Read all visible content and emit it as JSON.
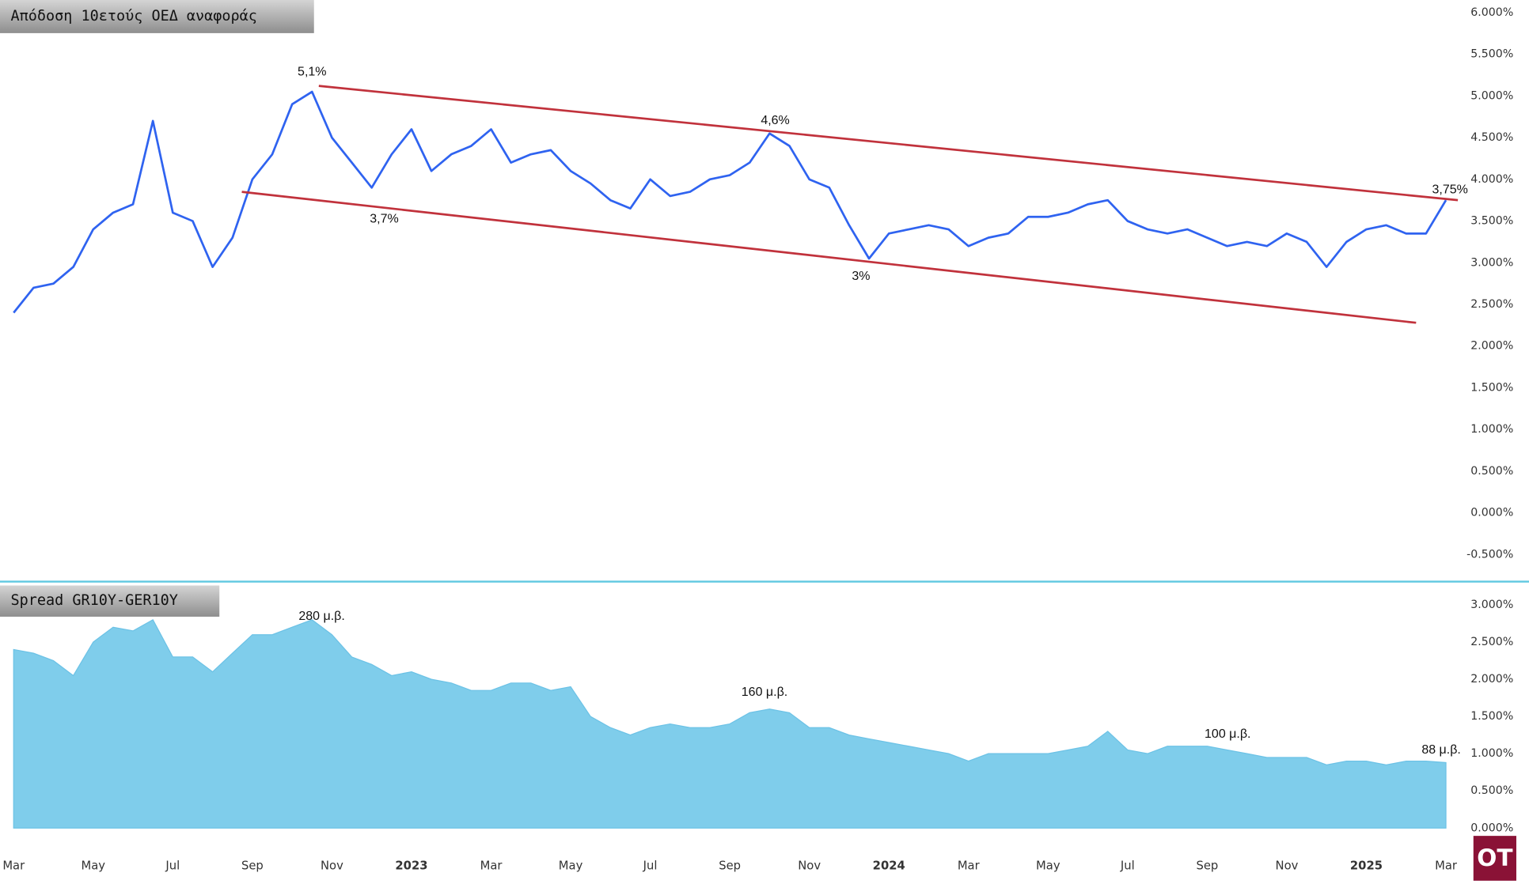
{
  "chart_data": [
    {
      "type": "line",
      "title": "Απόδοση 10ετούς ΟΕΔ αναφοράς",
      "color": "#2f63f0",
      "categories": [
        "Mar",
        null,
        null,
        null,
        "May",
        null,
        null,
        null,
        "Jul",
        null,
        null,
        null,
        "Sep",
        null,
        null,
        null,
        "Nov",
        null,
        null,
        null,
        "2023",
        null,
        null,
        null,
        "Mar",
        null,
        null,
        null,
        "May",
        null,
        null,
        null,
        "Jul",
        null,
        null,
        null,
        "Sep",
        null,
        null,
        null,
        "Nov",
        null,
        null,
        null,
        "2024",
        null,
        null,
        null,
        "Mar",
        null,
        null,
        null,
        "May",
        null,
        null,
        null,
        "Jul",
        null,
        null,
        null,
        "Sep",
        null,
        null,
        null,
        "Nov",
        null,
        null,
        null,
        "2025",
        null,
        null,
        null,
        "Mar"
      ],
      "values": [
        2.4,
        2.7,
        2.75,
        2.95,
        3.4,
        3.6,
        3.7,
        4.7,
        3.6,
        3.5,
        2.95,
        3.3,
        4.0,
        4.3,
        4.9,
        5.05,
        4.5,
        4.2,
        3.9,
        4.3,
        4.6,
        4.1,
        4.3,
        4.4,
        4.6,
        4.2,
        4.3,
        4.35,
        4.1,
        3.95,
        3.75,
        3.65,
        4.0,
        3.8,
        3.85,
        4.0,
        4.05,
        4.2,
        4.55,
        4.4,
        4.0,
        3.9,
        3.45,
        3.05,
        3.35,
        3.4,
        3.45,
        3.4,
        3.2,
        3.3,
        3.35,
        3.55,
        3.55,
        3.6,
        3.7,
        3.75,
        3.5,
        3.4,
        3.35,
        3.4,
        3.3,
        3.2,
        3.25,
        3.2,
        3.35,
        3.25,
        2.95,
        3.25,
        3.4,
        3.45,
        3.35,
        3.35,
        3.75
      ],
      "ylim": [
        -0.8,
        6.15
      ],
      "yticks": [
        {
          "value": 6,
          "label": "6.000%"
        },
        {
          "value": 5.5,
          "label": "5.500%"
        },
        {
          "value": 5,
          "label": "5.000%"
        },
        {
          "value": 4.5,
          "label": "4.500%"
        },
        {
          "value": 4,
          "label": "4.000%"
        },
        {
          "value": 3.5,
          "label": "3.500%"
        },
        {
          "value": 3,
          "label": "3.000%"
        },
        {
          "value": 2.5,
          "label": "2.500%"
        },
        {
          "value": 2,
          "label": "2.000%"
        },
        {
          "value": 1.5,
          "label": "1.500%"
        },
        {
          "value": 1,
          "label": "1.000%"
        },
        {
          "value": 0.5,
          "label": "0.500%"
        },
        {
          "value": 0,
          "label": "0.000%"
        },
        {
          "value": -0.5,
          "label": "-0.500%"
        }
      ],
      "trendlines": [
        {
          "color": "#c1323c",
          "x": [
            15.34,
            72.6
          ],
          "values": [
            5.12,
            3.75
          ]
        },
        {
          "color": "#c1323c",
          "x": [
            11.47,
            70.5
          ],
          "values": [
            3.85,
            2.28
          ]
        }
      ],
      "annotations": [
        "5,1%",
        "3,7%",
        "4,6%",
        "3%",
        "3,75%"
      ]
    },
    {
      "type": "area",
      "title": "Spread GR10Y-GER10Y",
      "color": "#7fcdeb",
      "categories": [
        "Mar",
        null,
        null,
        null,
        "May",
        null,
        null,
        null,
        "Jul",
        null,
        null,
        null,
        "Sep",
        null,
        null,
        null,
        "Nov",
        null,
        null,
        null,
        "2023",
        null,
        null,
        null,
        "Mar",
        null,
        null,
        null,
        "May",
        null,
        null,
        null,
        "Jul",
        null,
        null,
        null,
        "Sep",
        null,
        null,
        null,
        "Nov",
        null,
        null,
        null,
        "2024",
        null,
        null,
        null,
        "Mar",
        null,
        null,
        null,
        "May",
        null,
        null,
        null,
        "Jul",
        null,
        null,
        null,
        "Sep",
        null,
        null,
        null,
        "Nov",
        null,
        null,
        null,
        "2025",
        null,
        null,
        null,
        "Mar"
      ],
      "values": [
        2.4,
        2.35,
        2.25,
        2.05,
        2.5,
        2.7,
        2.65,
        2.8,
        2.3,
        2.3,
        2.1,
        2.35,
        2.6,
        2.6,
        2.7,
        2.8,
        2.6,
        2.3,
        2.2,
        2.05,
        2.1,
        2.0,
        1.95,
        1.85,
        1.85,
        1.95,
        1.95,
        1.85,
        1.9,
        1.5,
        1.35,
        1.25,
        1.35,
        1.4,
        1.35,
        1.35,
        1.4,
        1.55,
        1.6,
        1.55,
        1.35,
        1.35,
        1.25,
        1.2,
        1.15,
        1.1,
        1.05,
        1.0,
        0.9,
        1.0,
        1.0,
        1.0,
        1.0,
        1.05,
        1.1,
        1.3,
        1.05,
        1.0,
        1.1,
        1.1,
        1.1,
        1.05,
        1.0,
        0.95,
        0.95,
        0.95,
        0.85,
        0.9,
        0.9,
        0.85,
        0.9,
        0.9,
        0.88
      ],
      "ylim": [
        0,
        3.3
      ],
      "yticks": [
        {
          "value": 3,
          "label": "3.000%"
        },
        {
          "value": 2.5,
          "label": "2.500%"
        },
        {
          "value": 2,
          "label": "2.000%"
        },
        {
          "value": 1.5,
          "label": "1.500%"
        },
        {
          "value": 1,
          "label": "1.000%"
        },
        {
          "value": 0.5,
          "label": "0.500%"
        },
        {
          "value": 0,
          "label": "0.000%"
        }
      ],
      "annotations": [
        "280 μ.β.",
        "160 μ.β.",
        "100 μ.β.",
        "88 μ.β."
      ]
    }
  ],
  "logo": "OT"
}
